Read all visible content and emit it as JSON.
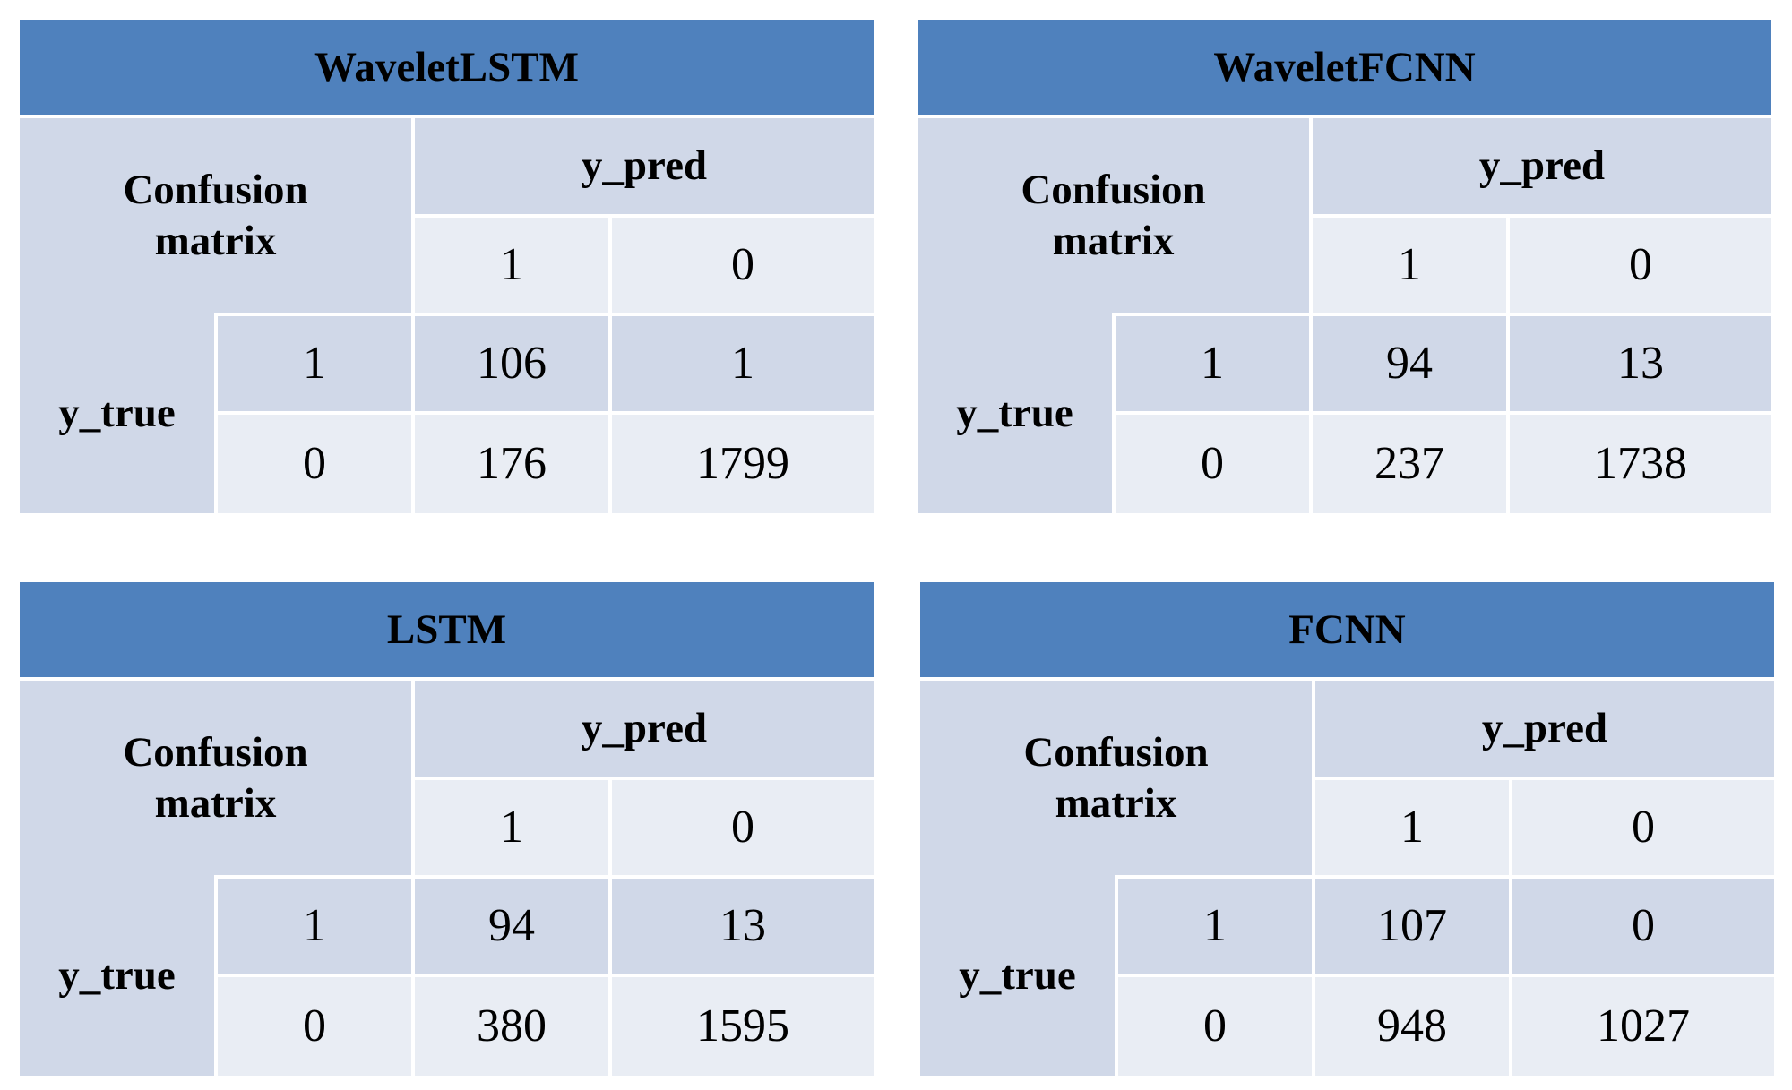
{
  "chart_data": [
    {
      "type": "table",
      "title": "WaveletLSTM",
      "corner_label": "Confusion matrix",
      "col_header": "y_pred",
      "row_header": "y_true",
      "columns": [
        "1",
        "0"
      ],
      "rows": [
        "1",
        "0"
      ],
      "values": [
        [
          "106",
          "1"
        ],
        [
          "176",
          "1799"
        ]
      ]
    },
    {
      "type": "table",
      "title": "WaveletFCNN",
      "corner_label": "Confusion matrix",
      "col_header": "y_pred",
      "row_header": "y_true",
      "columns": [
        "1",
        "0"
      ],
      "rows": [
        "1",
        "0"
      ],
      "values": [
        [
          "94",
          "13"
        ],
        [
          "237",
          "1738"
        ]
      ]
    },
    {
      "type": "table",
      "title": "LSTM",
      "corner_label": "Confusion matrix",
      "col_header": "y_pred",
      "row_header": "y_true",
      "columns": [
        "1",
        "0"
      ],
      "rows": [
        "1",
        "0"
      ],
      "values": [
        [
          "94",
          "13"
        ],
        [
          "380",
          "1595"
        ]
      ]
    },
    {
      "type": "table",
      "title": "FCNN",
      "corner_label": "Confusion matrix",
      "col_header": "y_pred",
      "row_header": "y_true",
      "columns": [
        "1",
        "0"
      ],
      "rows": [
        "1",
        "0"
      ],
      "values": [
        [
          "107",
          "0"
        ],
        [
          "948",
          "1027"
        ]
      ]
    }
  ],
  "colors": {
    "title_bg": "#4f81bd",
    "header_bg": "#d0d8e8",
    "cell_light": "#e9edf4",
    "grid": "#ffffff"
  }
}
